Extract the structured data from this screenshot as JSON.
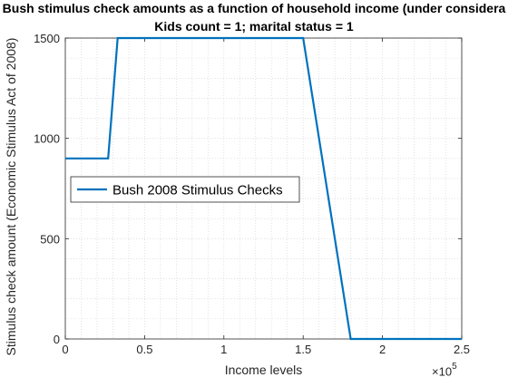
{
  "chart_data": {
    "type": "line",
    "title": "Bush stimulus check amounts as a function of household income (under considera",
    "subtitle": "Kids count = 1; marital status = 1",
    "xlabel": "Income levels",
    "ylabel": "Stimulus check amount (Economic Stimulus Act of 2008)",
    "x_exponent_base": "×10",
    "x_exponent_power": "5",
    "xlim": [
      0,
      2.5
    ],
    "ylim": [
      0,
      1500
    ],
    "x_ticks": [
      0,
      0.5,
      1,
      1.5,
      2,
      2.5
    ],
    "x_tick_labels": [
      "0",
      "0.5",
      "1",
      "1.5",
      "2",
      "2.5"
    ],
    "y_ticks": [
      0,
      500,
      1000,
      1500
    ],
    "y_tick_labels": [
      "0",
      "500",
      "1000",
      "1500"
    ],
    "grid": "minor-dotted",
    "legend_position": "middle-left",
    "series": [
      {
        "name": "Bush 2008 Stimulus Checks",
        "color": "#0072BD",
        "x": [
          0,
          0.27,
          0.33,
          1.5,
          1.8,
          2.5
        ],
        "y": [
          900,
          900,
          1500,
          1500,
          0,
          0
        ]
      }
    ]
  }
}
